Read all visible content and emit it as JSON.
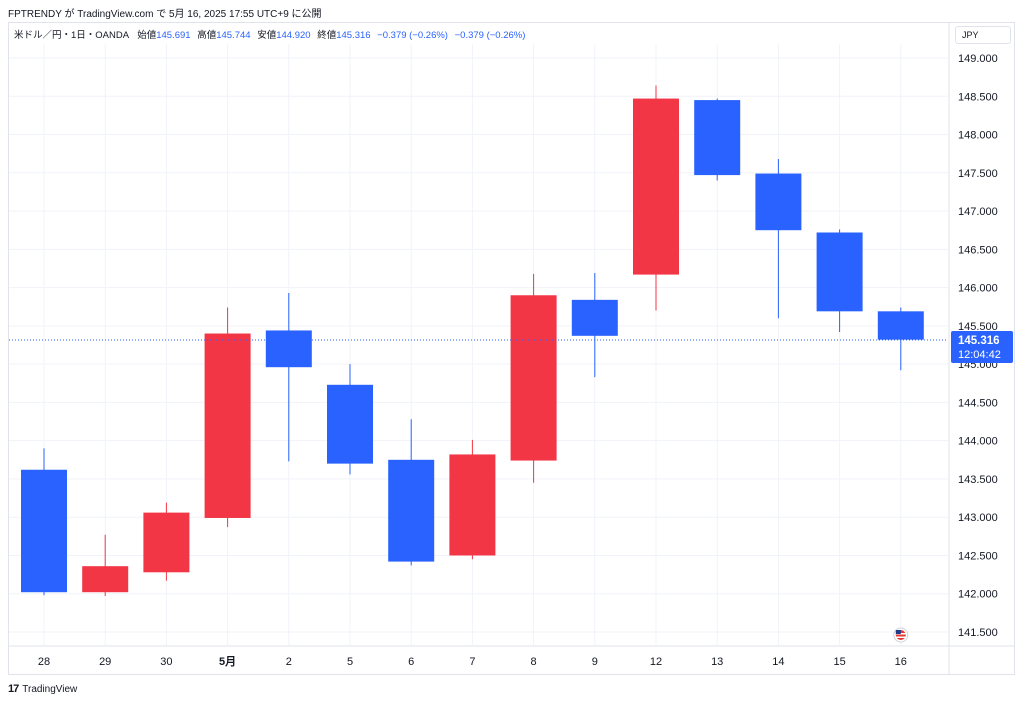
{
  "caption": "FPTRENDY が TradingView.com で 5月 16, 2025 17:55 UTC+9 に公開",
  "legend": {
    "symbol": "米ドル／円・1日・OANDA",
    "open_label": "始値",
    "open": "145.691",
    "high_label": "高値",
    "high": "145.744",
    "low_label": "安値",
    "low": "144.920",
    "close_label": "終値",
    "close": "145.316",
    "change": "−0.379 (−0.26%)",
    "change2": "−0.379 (−0.26%)"
  },
  "currency_button": "JPY",
  "price_badge": {
    "price": "145.316",
    "countdown": "12:04:42"
  },
  "brand": {
    "logo": "17",
    "name": "TradingView"
  },
  "colors": {
    "up": "#f23645",
    "down": "#2962ff",
    "grid": "#f0f3fa",
    "text": "#131722"
  },
  "chart_data": {
    "type": "candlestick",
    "x": [
      "28",
      "29",
      "30",
      "5月",
      "2",
      "5",
      "6",
      "7",
      "8",
      "9",
      "12",
      "13",
      "14",
      "15",
      "16"
    ],
    "ohlc": [
      {
        "open": 143.62,
        "high": 143.9,
        "low": 141.98,
        "close": 142.02
      },
      {
        "open": 142.02,
        "high": 142.77,
        "low": 141.97,
        "close": 142.36
      },
      {
        "open": 142.28,
        "high": 143.19,
        "low": 142.17,
        "close": 143.06
      },
      {
        "open": 142.99,
        "high": 145.74,
        "low": 142.87,
        "close": 145.4
      },
      {
        "open": 145.44,
        "high": 145.93,
        "low": 143.73,
        "close": 144.96
      },
      {
        "open": 144.73,
        "high": 145.0,
        "low": 143.56,
        "close": 143.7
      },
      {
        "open": 143.75,
        "high": 144.28,
        "low": 142.37,
        "close": 142.42
      },
      {
        "open": 142.5,
        "high": 144.01,
        "low": 142.45,
        "close": 143.82
      },
      {
        "open": 143.74,
        "high": 146.18,
        "low": 143.45,
        "close": 145.9
      },
      {
        "open": 145.84,
        "high": 146.19,
        "low": 144.83,
        "close": 145.37
      },
      {
        "open": 146.17,
        "high": 148.64,
        "low": 145.7,
        "close": 148.47
      },
      {
        "open": 148.45,
        "high": 148.47,
        "low": 147.4,
        "close": 147.47
      },
      {
        "open": 147.49,
        "high": 147.68,
        "low": 145.6,
        "close": 146.75
      },
      {
        "open": 146.72,
        "high": 146.76,
        "low": 145.42,
        "close": 145.69
      },
      {
        "open": 145.69,
        "high": 145.74,
        "low": 144.92,
        "close": 145.32
      }
    ],
    "y_ticks": [
      "141.500",
      "142.000",
      "142.500",
      "143.000",
      "143.500",
      "144.000",
      "144.500",
      "145.000",
      "145.500",
      "146.000",
      "146.500",
      "147.000",
      "147.500",
      "148.000",
      "148.500",
      "149.000"
    ],
    "ylim": [
      141.2,
      149.3
    ],
    "last_price": 145.316,
    "grid": true
  }
}
